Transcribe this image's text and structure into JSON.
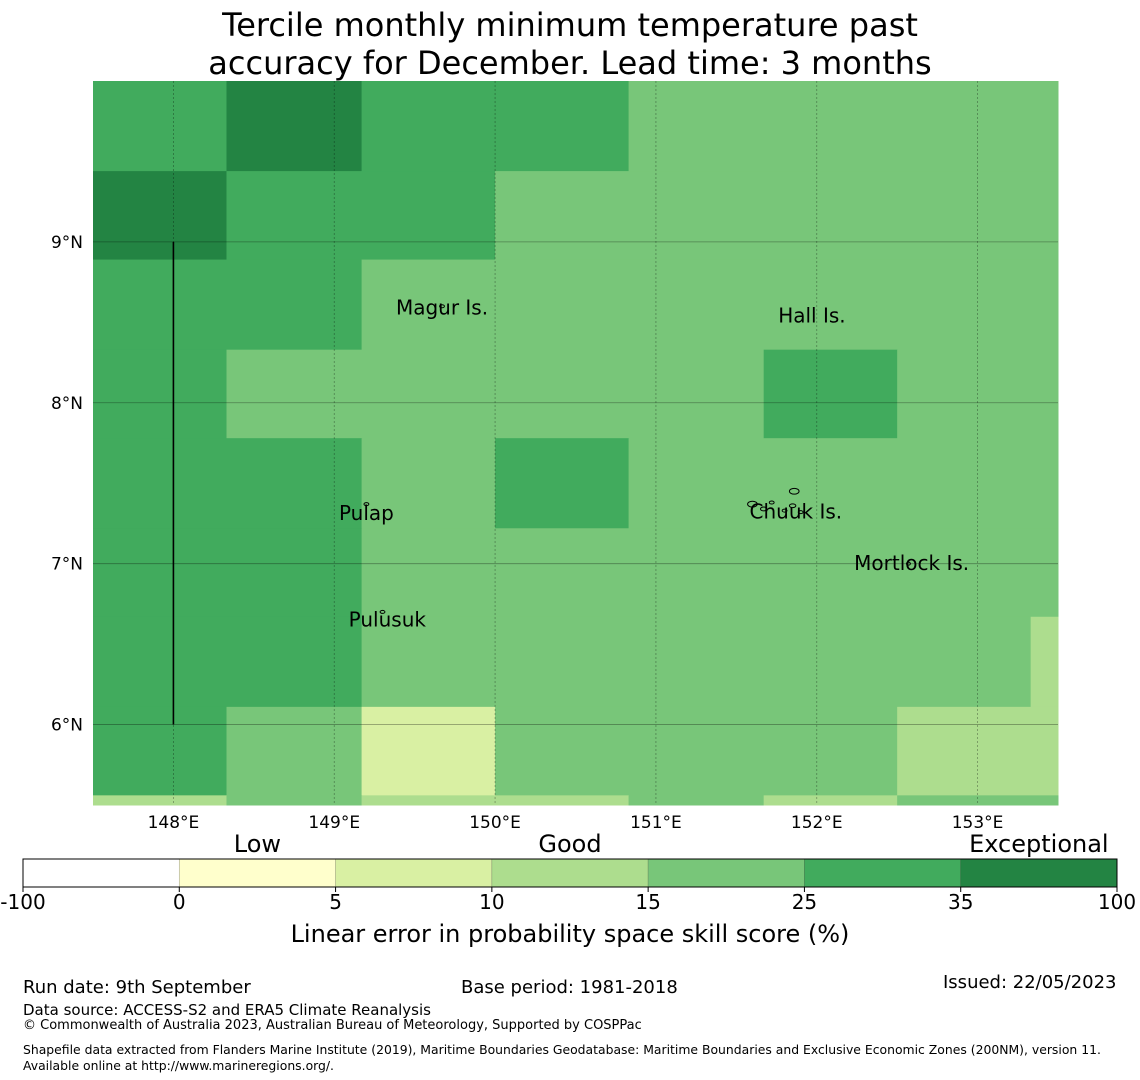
{
  "title": {
    "line1": "Tercile monthly minimum temperature past",
    "line2": "accuracy for December. Lead time: 3 months"
  },
  "map": {
    "lon_range": [
      147.5,
      153.5
    ],
    "lat_range": [
      5.5,
      10.0
    ],
    "x_ticks": [
      {
        "lon": 148,
        "label": "148°E"
      },
      {
        "lon": 149,
        "label": "149°E"
      },
      {
        "lon": 150,
        "label": "150°E"
      },
      {
        "lon": 151,
        "label": "151°E"
      },
      {
        "lon": 152,
        "label": "152°E"
      },
      {
        "lon": 153,
        "label": "153°E"
      }
    ],
    "y_ticks": [
      {
        "lat": 9,
        "label": "9°N"
      },
      {
        "lat": 8,
        "label": "8°N"
      },
      {
        "lat": 7,
        "label": "7°N"
      },
      {
        "lat": 6,
        "label": "6°N"
      }
    ],
    "grid": true,
    "grid_cells": [
      {
        "lon0": 147.5,
        "lon1": 148.33,
        "lat0": 9.44,
        "lat1": 10.0,
        "value": 30
      },
      {
        "lon0": 148.33,
        "lon1": 149.17,
        "lat0": 9.44,
        "lat1": 10.0,
        "value": 40
      },
      {
        "lon0": 149.17,
        "lon1": 150.0,
        "lat0": 9.44,
        "lat1": 10.0,
        "value": 30
      },
      {
        "lon0": 150.0,
        "lon1": 150.83,
        "lat0": 9.44,
        "lat1": 10.0,
        "value": 30
      },
      {
        "lon0": 150.83,
        "lon1": 153.5,
        "lat0": 9.44,
        "lat1": 10.0,
        "value": 20
      },
      {
        "lon0": 147.5,
        "lon1": 148.33,
        "lat0": 8.89,
        "lat1": 9.44,
        "value": 40
      },
      {
        "lon0": 148.33,
        "lon1": 150.0,
        "lat0": 8.89,
        "lat1": 9.44,
        "value": 30
      },
      {
        "lon0": 150.0,
        "lon1": 153.5,
        "lat0": 8.89,
        "lat1": 9.44,
        "value": 20
      },
      {
        "lon0": 147.5,
        "lon1": 149.17,
        "lat0": 8.33,
        "lat1": 8.89,
        "value": 30
      },
      {
        "lon0": 149.17,
        "lon1": 153.5,
        "lat0": 8.33,
        "lat1": 8.89,
        "value": 20
      },
      {
        "lon0": 147.5,
        "lon1": 148.33,
        "lat0": 7.78,
        "lat1": 8.33,
        "value": 30
      },
      {
        "lon0": 148.33,
        "lon1": 151.67,
        "lat0": 7.78,
        "lat1": 8.33,
        "value": 20
      },
      {
        "lon0": 151.67,
        "lon1": 152.5,
        "lat0": 7.78,
        "lat1": 8.33,
        "value": 30
      },
      {
        "lon0": 152.5,
        "lon1": 153.5,
        "lat0": 7.78,
        "lat1": 8.33,
        "value": 20
      },
      {
        "lon0": 147.5,
        "lon1": 149.17,
        "lat0": 7.22,
        "lat1": 7.78,
        "value": 30
      },
      {
        "lon0": 149.17,
        "lon1": 150.0,
        "lat0": 7.22,
        "lat1": 7.78,
        "value": 20
      },
      {
        "lon0": 150.0,
        "lon1": 150.83,
        "lat0": 7.22,
        "lat1": 7.78,
        "value": 30
      },
      {
        "lon0": 150.83,
        "lon1": 153.5,
        "lat0": 7.22,
        "lat1": 7.78,
        "value": 20
      },
      {
        "lon0": 147.5,
        "lon1": 149.17,
        "lat0": 6.67,
        "lat1": 7.22,
        "value": 30
      },
      {
        "lon0": 149.17,
        "lon1": 153.5,
        "lat0": 6.67,
        "lat1": 7.22,
        "value": 20
      },
      {
        "lon0": 147.5,
        "lon1": 149.17,
        "lat0": 6.11,
        "lat1": 6.67,
        "value": 30
      },
      {
        "lon0": 149.17,
        "lon1": 153.33,
        "lat0": 6.11,
        "lat1": 6.67,
        "value": 20
      },
      {
        "lon0": 153.33,
        "lon1": 153.5,
        "lat0": 6.11,
        "lat1": 6.67,
        "value": 12
      },
      {
        "lon0": 147.5,
        "lon1": 148.33,
        "lat0": 5.56,
        "lat1": 6.11,
        "value": 30
      },
      {
        "lon0": 148.33,
        "lon1": 149.17,
        "lat0": 5.56,
        "lat1": 6.11,
        "value": 20
      },
      {
        "lon0": 149.17,
        "lon1": 150.0,
        "lat0": 5.56,
        "lat1": 6.11,
        "value": 7
      },
      {
        "lon0": 150.0,
        "lon1": 152.5,
        "lat0": 5.56,
        "lat1": 6.11,
        "value": 20
      },
      {
        "lon0": 152.5,
        "lon1": 153.5,
        "lat0": 5.56,
        "lat1": 6.11,
        "value": 12
      },
      {
        "lon0": 147.5,
        "lon1": 148.33,
        "lat0": 5.5,
        "lat1": 5.56,
        "value": 12
      },
      {
        "lon0": 148.33,
        "lon1": 149.17,
        "lat0": 5.5,
        "lat1": 5.56,
        "value": 20
      },
      {
        "lon0": 149.17,
        "lon1": 150.0,
        "lat0": 5.5,
        "lat1": 5.56,
        "value": 12
      },
      {
        "lon0": 150.0,
        "lon1": 150.83,
        "lat0": 5.5,
        "lat1": 5.56,
        "value": 12
      },
      {
        "lon0": 150.83,
        "lon1": 151.67,
        "lat0": 5.5,
        "lat1": 5.56,
        "value": 20
      },
      {
        "lon0": 151.67,
        "lon1": 152.5,
        "lat0": 5.5,
        "lat1": 5.56,
        "value": 12
      },
      {
        "lon0": 152.5,
        "lon1": 153.5,
        "lat0": 5.5,
        "lat1": 5.56,
        "value": 20
      }
    ],
    "boundary_line": {
      "lon": 148.0,
      "lat0": 6.0,
      "lat1": 9.0
    },
    "labels": [
      {
        "name": "Magur Is.",
        "lon": 149.67,
        "lat": 8.55
      },
      {
        "name": "Hall Is.",
        "lon": 151.97,
        "lat": 8.5
      },
      {
        "name": "Pulap",
        "lon": 149.2,
        "lat": 7.27
      },
      {
        "name": "Chuuk Is.",
        "lon": 151.87,
        "lat": 7.28
      },
      {
        "name": "Mortlock Is.",
        "lon": 152.59,
        "lat": 6.96
      },
      {
        "name": "Pulusuk",
        "lon": 149.33,
        "lat": 6.61
      }
    ],
    "islands": [
      {
        "lon": 149.67,
        "lat": 8.6,
        "r": 0.015
      },
      {
        "lon": 149.2,
        "lat": 7.37,
        "r": 0.015
      },
      {
        "lon": 149.3,
        "lat": 6.7,
        "r": 0.015
      },
      {
        "lon": 152.57,
        "lat": 7.0,
        "r": 0.01
      },
      {
        "lon": 151.6,
        "lat": 7.37,
        "r": 0.03
      },
      {
        "lon": 151.67,
        "lat": 7.34,
        "r": 0.02
      },
      {
        "lon": 151.72,
        "lat": 7.38,
        "r": 0.015
      },
      {
        "lon": 151.85,
        "lat": 7.36,
        "r": 0.02
      },
      {
        "lon": 151.86,
        "lat": 7.45,
        "r": 0.03
      },
      {
        "lon": 151.8,
        "lat": 7.33,
        "r": 0.015
      },
      {
        "lon": 151.9,
        "lat": 7.32,
        "r": 0.015
      }
    ]
  },
  "colorbar": {
    "boundaries": [
      -100,
      0,
      5,
      10,
      15,
      25,
      35,
      100
    ],
    "tick_labels": [
      "-100",
      "0",
      "5",
      "10",
      "15",
      "25",
      "35",
      "100"
    ],
    "colors": [
      "#ffffff",
      "#ffffcc",
      "#d9f0a3",
      "#addd8e",
      "#78c679",
      "#41ab5d",
      "#238443"
    ],
    "category_labels": [
      {
        "text": "Low",
        "at": 2.5
      },
      {
        "text": "Good",
        "at": 12.5
      },
      {
        "text": "Exceptional",
        "at": 67.5
      }
    ],
    "label": "Linear error in probability space skill score (%)"
  },
  "footer": {
    "run_date": "Run date: 9th September",
    "base_period": "Base period: 1981-2018",
    "issued": "Issued: 22/05/2023",
    "data_source": "Data source: ACCESS-S2 and ERA5 Climate Reanalysis",
    "copyright": "© Commonwealth of Australia 2023, Australian Bureau of Meteorology, Supported by COSPPac",
    "shapefile": "Shapefile data extracted from Flanders Marine Institute (2019), Maritime Boundaries Geodatabase: Maritime Boundaries and Exclusive Economic Zones (200NM), version 11. Available online at http://www.marineregions.org/."
  }
}
